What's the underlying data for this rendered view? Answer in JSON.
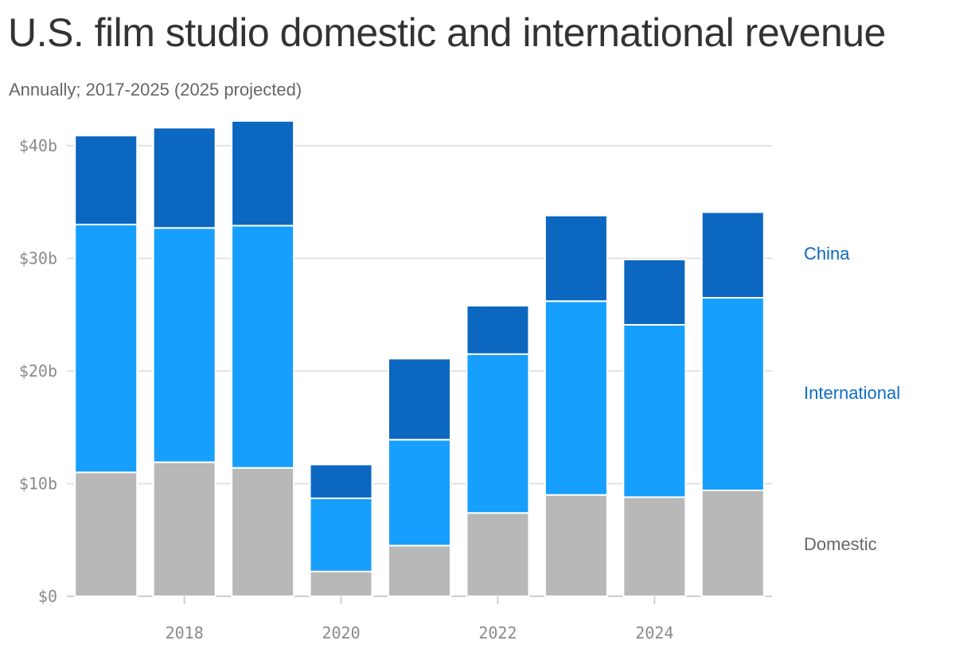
{
  "chart_data": {
    "type": "bar",
    "stacked": true,
    "title": "U.S. film studio domestic and international revenue",
    "subtitle": "Annually; 2017-2025 (2025 projected)",
    "x": [
      2017,
      2018,
      2019,
      2020,
      2021,
      2022,
      2023,
      2024,
      2025
    ],
    "x_ticks": [
      2018,
      2020,
      2022,
      2024
    ],
    "x_tick_labels": [
      "2018",
      "2020",
      "2022",
      "2024"
    ],
    "y_ticks": [
      0,
      10,
      20,
      30,
      40
    ],
    "y_tick_labels": [
      "$0",
      "$10b",
      "$20b",
      "$30b",
      "$40b"
    ],
    "ylim": [
      0,
      40
    ],
    "grid": true,
    "legend_placement": "right",
    "series": [
      {
        "name": "Domestic",
        "color": "#b8b8b8",
        "label_color": "#666666",
        "values": [
          11.0,
          11.9,
          11.4,
          2.2,
          4.5,
          7.4,
          9.0,
          8.8,
          9.4
        ]
      },
      {
        "name": "International",
        "color": "#169ffc",
        "label_color": "#0d6ec9",
        "values": [
          22.0,
          20.8,
          21.5,
          6.5,
          9.4,
          14.1,
          17.2,
          15.3,
          17.1
        ]
      },
      {
        "name": "China",
        "color": "#0b67bf",
        "label_color": "#0b67bf",
        "values": [
          7.9,
          8.9,
          9.3,
          3.0,
          7.2,
          4.3,
          7.6,
          5.8,
          7.6
        ]
      }
    ]
  }
}
